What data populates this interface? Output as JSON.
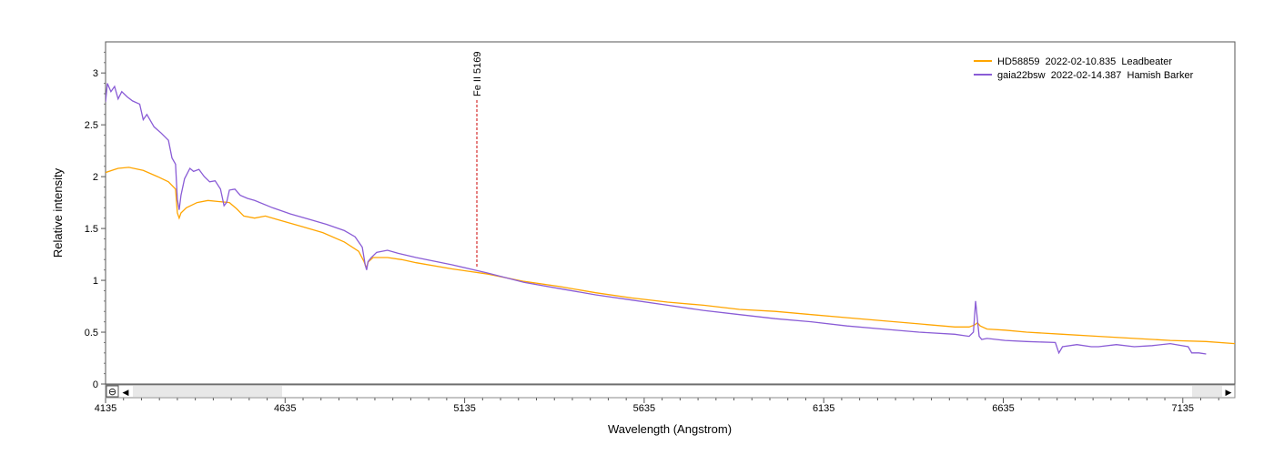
{
  "chart_data": {
    "type": "line",
    "xlabel": "Wavelength (Angstrom)",
    "ylabel": "Relative intensity",
    "xlim": [
      4135,
      7280
    ],
    "ylim": [
      0,
      3.3
    ],
    "xticks": [
      4135,
      4635,
      5135,
      5635,
      6135,
      6635,
      7135
    ],
    "xtick_labels": [
      "4135",
      "4635",
      "5135",
      "5635",
      "6135",
      "6635",
      "7135"
    ],
    "yticks": [
      0,
      0.5,
      1,
      1.5,
      2,
      2.5,
      3
    ],
    "ytick_labels": [
      "0",
      "0.5",
      "1",
      "1.5",
      "2",
      "2.5",
      "3"
    ],
    "grid": false,
    "legend_position": "top-right",
    "series": [
      {
        "name": "HD58859  2022-02-10.835  Leadbeater",
        "color": "#FFA500",
        "x": [
          4135,
          4170,
          4200,
          4240,
          4280,
          4310,
          4330,
          4335,
          4340,
          4345,
          4360,
          4390,
          4420,
          4450,
          4480,
          4500,
          4520,
          4550,
          4580,
          4620,
          4680,
          4740,
          4800,
          4840,
          4855,
          4861,
          4867,
          4880,
          4920,
          4960,
          5000,
          5100,
          5200,
          5300,
          5400,
          5500,
          5600,
          5700,
          5800,
          5900,
          6000,
          6100,
          6200,
          6300,
          6400,
          6500,
          6540,
          6555,
          6563,
          6571,
          6590,
          6640,
          6700,
          6800,
          6900,
          7000,
          7100,
          7200,
          7280
        ],
        "y": [
          2.04,
          2.08,
          2.09,
          2.06,
          2.0,
          1.95,
          1.88,
          1.65,
          1.6,
          1.65,
          1.7,
          1.75,
          1.77,
          1.76,
          1.75,
          1.69,
          1.62,
          1.6,
          1.62,
          1.58,
          1.52,
          1.46,
          1.37,
          1.28,
          1.18,
          1.12,
          1.18,
          1.22,
          1.22,
          1.2,
          1.17,
          1.11,
          1.06,
          0.99,
          0.94,
          0.88,
          0.83,
          0.79,
          0.76,
          0.72,
          0.7,
          0.67,
          0.64,
          0.61,
          0.58,
          0.55,
          0.55,
          0.57,
          0.59,
          0.56,
          0.53,
          0.52,
          0.5,
          0.48,
          0.46,
          0.44,
          0.42,
          0.41,
          0.39
        ]
      },
      {
        "name": "gaia22bsw  2022-02-14.387  Hamish Barker",
        "color": "#8A5CD6",
        "x": [
          4135,
          4140,
          4150,
          4160,
          4170,
          4180,
          4195,
          4210,
          4230,
          4240,
          4250,
          4270,
          4290,
          4310,
          4320,
          4330,
          4335,
          4340,
          4345,
          4355,
          4370,
          4380,
          4395,
          4410,
          4425,
          4440,
          4455,
          4465,
          4472,
          4480,
          4495,
          4510,
          4530,
          4550,
          4600,
          4650,
          4700,
          4750,
          4800,
          4830,
          4850,
          4858,
          4862,
          4866,
          4875,
          4890,
          4920,
          4950,
          5000,
          5100,
          5200,
          5300,
          5400,
          5500,
          5600,
          5700,
          5800,
          5900,
          6000,
          6100,
          6200,
          6300,
          6400,
          6500,
          6540,
          6552,
          6558,
          6563,
          6568,
          6575,
          6590,
          6640,
          6700,
          6780,
          6790,
          6800,
          6840,
          6880,
          6900,
          6950,
          7000,
          7050,
          7100,
          7150,
          7160,
          7180,
          7200
        ],
        "y": [
          2.72,
          2.9,
          2.82,
          2.87,
          2.75,
          2.82,
          2.77,
          2.73,
          2.7,
          2.55,
          2.6,
          2.48,
          2.42,
          2.35,
          2.18,
          2.12,
          1.78,
          1.68,
          1.82,
          1.98,
          2.08,
          2.05,
          2.07,
          2.0,
          1.95,
          1.96,
          1.88,
          1.72,
          1.75,
          1.87,
          1.88,
          1.82,
          1.79,
          1.77,
          1.7,
          1.64,
          1.59,
          1.54,
          1.48,
          1.42,
          1.32,
          1.15,
          1.1,
          1.18,
          1.22,
          1.27,
          1.29,
          1.26,
          1.22,
          1.15,
          1.07,
          0.98,
          0.92,
          0.86,
          0.81,
          0.76,
          0.71,
          0.67,
          0.63,
          0.6,
          0.56,
          0.53,
          0.5,
          0.48,
          0.46,
          0.5,
          0.8,
          0.62,
          0.46,
          0.43,
          0.44,
          0.42,
          0.41,
          0.4,
          0.3,
          0.36,
          0.38,
          0.36,
          0.36,
          0.38,
          0.36,
          0.37,
          0.39,
          0.36,
          0.3,
          0.3,
          0.29
        ]
      }
    ],
    "annotations": [
      {
        "label": "Fe II 5169",
        "x": 5169,
        "y": 1.12,
        "color": "#CC0000",
        "style": "dashed"
      }
    ]
  },
  "scrollbar": {
    "zoom_glyph": "⊖",
    "left_arrow": "◀",
    "right_arrow": "▶"
  }
}
